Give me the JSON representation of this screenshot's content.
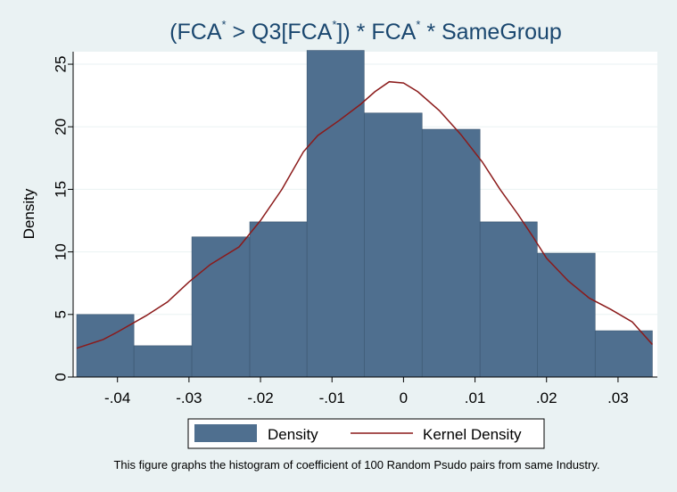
{
  "chart_data": {
    "type": "bar",
    "title": {
      "part1": "(FCA",
      "sup1": "*",
      "part2": " > Q3[FCA",
      "sup2": "*",
      "part3": "]) * FCA",
      "sup3": "*",
      "part4": " * SameGroup"
    },
    "ylabel": "Density",
    "xlabel": "",
    "xlim": [
      -0.0462,
      0.0355
    ],
    "ylim": [
      0,
      26
    ],
    "x_ticks": [
      {
        "value": -0.04,
        "label": "-.04"
      },
      {
        "value": -0.03,
        "label": "-.03"
      },
      {
        "value": -0.02,
        "label": "-.02"
      },
      {
        "value": -0.01,
        "label": "-.01"
      },
      {
        "value": 0,
        "label": "0"
      },
      {
        "value": 0.01,
        "label": ".01"
      },
      {
        "value": 0.02,
        "label": ".02"
      },
      {
        "value": 0.03,
        "label": ".03"
      }
    ],
    "y_ticks": [
      {
        "value": 0,
        "label": "0"
      },
      {
        "value": 5,
        "label": "5"
      },
      {
        "value": 10,
        "label": "10"
      },
      {
        "value": 15,
        "label": "15"
      },
      {
        "value": 20,
        "label": "20"
      },
      {
        "value": 25,
        "label": "25"
      }
    ],
    "grid": true,
    "series": [
      {
        "name": "Density",
        "type": "histogram",
        "color": "#4f6f8f",
        "bins": [
          {
            "x0": -0.0457,
            "x1": -0.0377,
            "y": 5.0
          },
          {
            "x0": -0.0377,
            "x1": -0.0296,
            "y": 2.5
          },
          {
            "x0": -0.0296,
            "x1": -0.0215,
            "y": 11.2
          },
          {
            "x0": -0.0215,
            "x1": -0.0135,
            "y": 12.4
          },
          {
            "x0": -0.0135,
            "x1": -0.0055,
            "y": 26.1
          },
          {
            "x0": -0.0055,
            "x1": 0.0026,
            "y": 21.1
          },
          {
            "x0": 0.0026,
            "x1": 0.0107,
            "y": 19.8
          },
          {
            "x0": 0.0107,
            "x1": 0.0187,
            "y": 12.4
          },
          {
            "x0": 0.0187,
            "x1": 0.0268,
            "y": 9.9
          },
          {
            "x0": 0.0268,
            "x1": 0.0348,
            "y": 3.7
          }
        ]
      },
      {
        "name": "Kernel Density",
        "type": "line",
        "color": "#8b1a1a",
        "points": [
          [
            -0.0457,
            2.3
          ],
          [
            -0.042,
            3.0
          ],
          [
            -0.04,
            3.6
          ],
          [
            -0.036,
            4.9
          ],
          [
            -0.033,
            6.0
          ],
          [
            -0.03,
            7.6
          ],
          [
            -0.027,
            9.0
          ],
          [
            -0.023,
            10.4
          ],
          [
            -0.02,
            12.5
          ],
          [
            -0.017,
            15.0
          ],
          [
            -0.014,
            18.0
          ],
          [
            -0.012,
            19.3
          ],
          [
            -0.009,
            20.5
          ],
          [
            -0.006,
            21.8
          ],
          [
            -0.004,
            22.8
          ],
          [
            -0.002,
            23.6
          ],
          [
            0.0,
            23.5
          ],
          [
            0.002,
            22.8
          ],
          [
            0.005,
            21.3
          ],
          [
            0.008,
            19.4
          ],
          [
            0.011,
            17.2
          ],
          [
            0.0135,
            15.0
          ],
          [
            0.016,
            13.0
          ],
          [
            0.018,
            11.3
          ],
          [
            0.02,
            9.5
          ],
          [
            0.023,
            7.7
          ],
          [
            0.026,
            6.3
          ],
          [
            0.029,
            5.4
          ],
          [
            0.032,
            4.4
          ],
          [
            0.0348,
            2.6
          ]
        ]
      }
    ],
    "legend": {
      "placement": "bottom",
      "items": [
        {
          "label": "Density",
          "kind": "box"
        },
        {
          "label": "Kernel Density",
          "kind": "line"
        }
      ]
    },
    "note": "This figure graphs the histogram of coefficient of 100 Random Psudo pairs from same Industry.",
    "colors": {
      "background": "#eaf2f3",
      "plot": "#ffffff",
      "grid": "#eaf2f3",
      "title": "#1a476f"
    }
  }
}
